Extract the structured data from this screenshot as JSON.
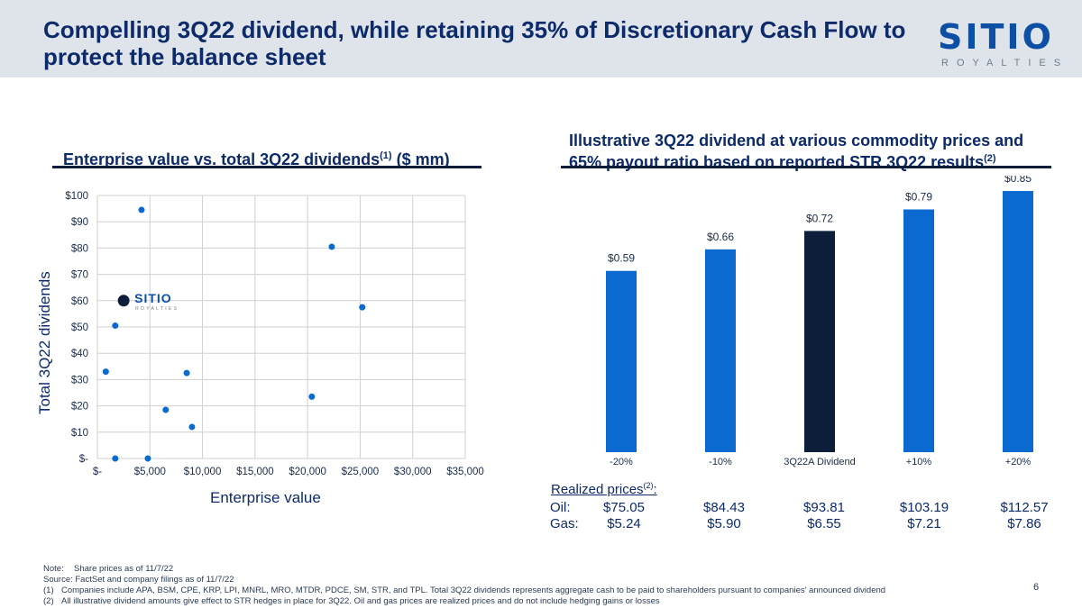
{
  "title": "Compelling 3Q22 dividend, while retaining 35% of Discretionary Cash Flow to protect the balance sheet",
  "logo": {
    "word": "SITIO",
    "sub": "ROYALTIES"
  },
  "left_section": {
    "title": "Enterprise value vs. total 3Q22 dividends",
    "sup": "(1)",
    "unit": "($ mm)"
  },
  "right_section": {
    "title_line1": "Illustrative 3Q22 dividend at various commodity prices and",
    "title_line2": "65% payout ratio based on reported STR 3Q22 results",
    "sup": "(2)"
  },
  "chart_data": [
    {
      "type": "scatter",
      "xlabel": "Enterprise value",
      "ylabel": "Total 3Q22 dividends",
      "xlim": [
        0,
        35000
      ],
      "ylim": [
        0,
        100
      ],
      "x_ticks": [
        "$-",
        "$5,000",
        "$10,000",
        "$15,000",
        "$20,000",
        "$25,000",
        "$30,000",
        "$35,000"
      ],
      "y_ticks": [
        "$-",
        "$10",
        "$20",
        "$30",
        "$40",
        "$50",
        "$60",
        "$70",
        "$80",
        "$90",
        "$100"
      ],
      "points": [
        {
          "x": 4200,
          "y": 94.5
        },
        {
          "x": 22300,
          "y": 80.5
        },
        {
          "x": 25200,
          "y": 57.5
        },
        {
          "x": 1700,
          "y": 50.5
        },
        {
          "x": 800,
          "y": 33
        },
        {
          "x": 8500,
          "y": 32.5
        },
        {
          "x": 20400,
          "y": 23.5
        },
        {
          "x": 6500,
          "y": 18.5
        },
        {
          "x": 9000,
          "y": 12
        },
        {
          "x": 1700,
          "y": 0
        },
        {
          "x": 4800,
          "y": 0
        }
      ],
      "highlight": {
        "x": 2500,
        "y": 60,
        "label": "SITIO",
        "sublabel": "ROYALTIES"
      },
      "grid": true
    },
    {
      "type": "bar",
      "categories": [
        "-20%",
        "-10%",
        "3Q22A Dividend",
        "+10%",
        "+20%"
      ],
      "values": [
        0.59,
        0.66,
        0.72,
        0.79,
        0.85
      ],
      "labels": [
        "$0.59",
        "$0.66",
        "$0.72",
        "$0.79",
        "$0.85"
      ],
      "highlight_index": 2,
      "colors": {
        "bar": "#0a6ad0",
        "highlight": "#0d1e3a"
      },
      "ylim": [
        0,
        0.9
      ]
    }
  ],
  "prices": {
    "header": "Realized prices",
    "sup": "(2)",
    "colon": ":",
    "oil_label": "Oil:",
    "gas_label": "Gas:",
    "oil": [
      "$75.05",
      "$84.43",
      "$93.81",
      "$103.19",
      "$112.57"
    ],
    "gas": [
      "$5.24",
      "$5.90",
      "$6.55",
      "$7.21",
      "$7.86"
    ]
  },
  "footnotes": {
    "note_label": "Note:",
    "note": "Share prices as of 11/7/22",
    "source": "Source:  FactSet and company filings as of 11/7/22",
    "fn1_num": "(1)",
    "fn1": "Companies include APA, BSM, CPE, KRP, LPI, MNRL, MRO, MTDR, PDCE, SM, STR, and TPL. Total 3Q22 dividends represents aggregate cash to be paid to shareholders pursuant to companies’ announced dividend",
    "fn2_num": "(2)",
    "fn2": "All illustrative dividend amounts give effect to STR hedges in place for 3Q22. Oil and gas prices are realized prices and do not include hedging gains or losses"
  },
  "page_number": "6"
}
